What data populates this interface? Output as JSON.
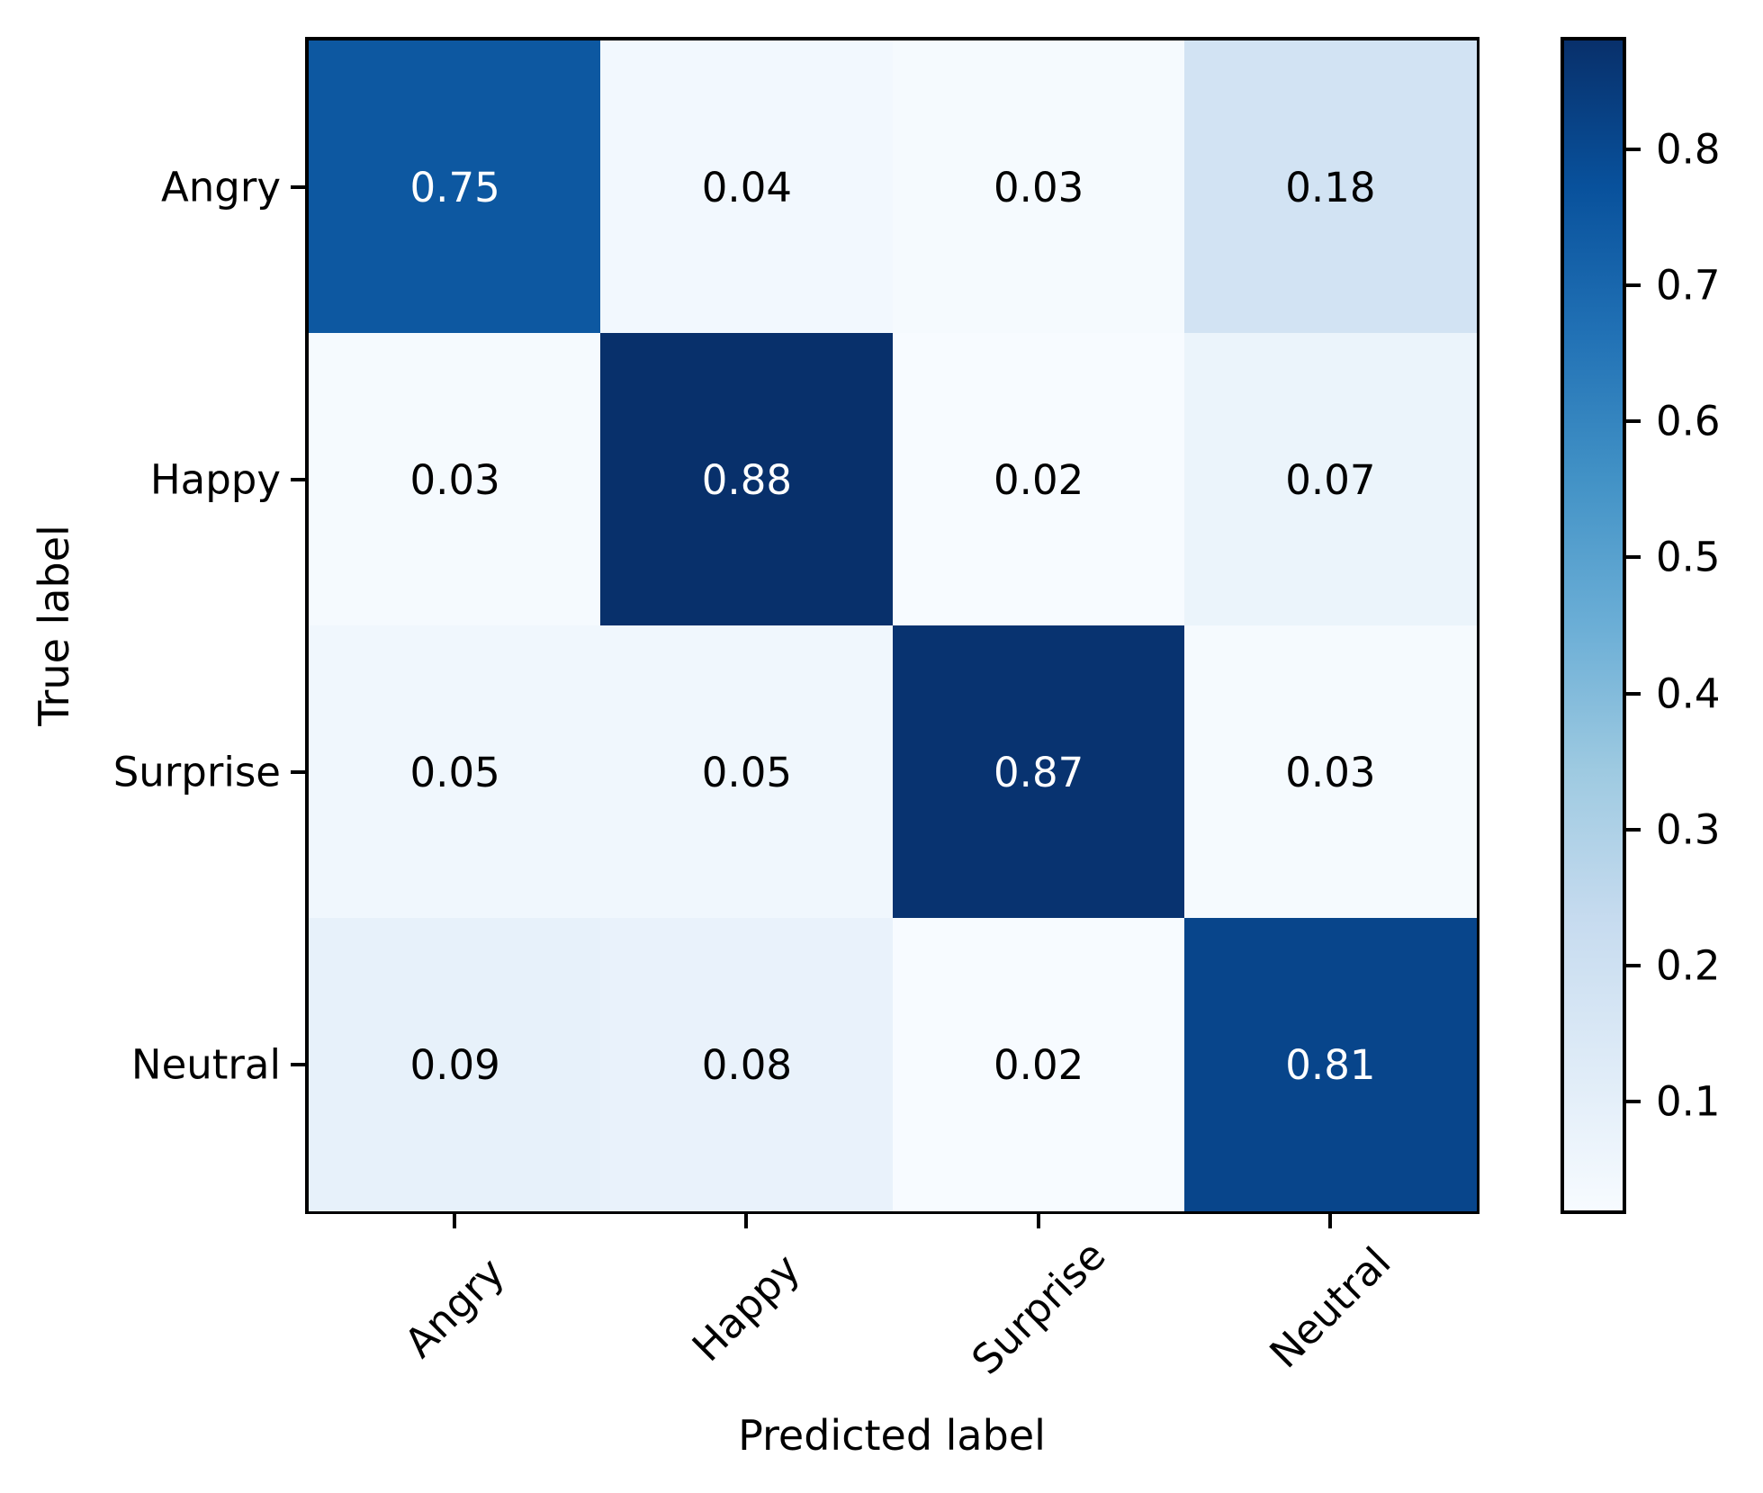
{
  "figure": {
    "background": "#ffffff"
  },
  "chart_data": {
    "type": "heatmap",
    "subtype": "confusion-matrix",
    "xlabel": "Predicted label",
    "ylabel": "True label",
    "categories": [
      "Angry",
      "Happy",
      "Surprise",
      "Neutral"
    ],
    "x_tick_labels": [
      "Angry",
      "Happy",
      "Surprise",
      "Neutral"
    ],
    "y_tick_labels": [
      "Angry",
      "Happy",
      "Surprise",
      "Neutral"
    ],
    "matrix": [
      [
        0.75,
        0.04,
        0.03,
        0.18
      ],
      [
        0.03,
        0.88,
        0.02,
        0.07
      ],
      [
        0.05,
        0.05,
        0.87,
        0.03
      ],
      [
        0.09,
        0.08,
        0.02,
        0.81
      ]
    ],
    "cell_labels": [
      [
        "0.75",
        "0.04",
        "0.03",
        "0.18"
      ],
      [
        "0.03",
        "0.88",
        "0.02",
        "0.07"
      ],
      [
        "0.05",
        "0.05",
        "0.87",
        "0.03"
      ],
      [
        "0.09",
        "0.08",
        "0.02",
        "0.81"
      ]
    ],
    "vmin": 0.02,
    "vmax": 0.88,
    "colormap": {
      "name": "Blues",
      "anchors": [
        "#f7fbff",
        "#deebf7",
        "#c6dbef",
        "#9ecae1",
        "#6baed6",
        "#4292c6",
        "#2171b5",
        "#08519c",
        "#08306b"
      ]
    },
    "colorbar": {
      "ticks": [
        0.8,
        0.7,
        0.6,
        0.5,
        0.4,
        0.3,
        0.2,
        0.1
      ],
      "tick_labels": [
        "0.8",
        "0.7",
        "0.6",
        "0.5",
        "0.4",
        "0.3",
        "0.2",
        "0.1"
      ]
    },
    "cell_text_colors": {
      "on_dark": "#ffffff",
      "on_light": "#000000"
    },
    "grid": false,
    "legend_position": "colorbar-right"
  }
}
